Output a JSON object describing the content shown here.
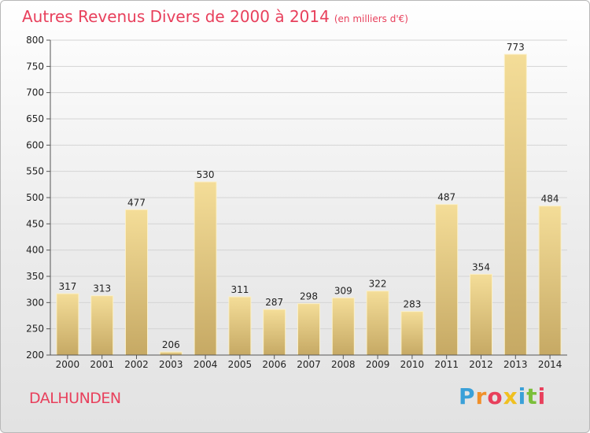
{
  "chart_title": "Autres Revenus Divers de 2000 à 2014",
  "chart_unit": "(en milliers d'€)",
  "town": "DALHUNDEN",
  "brand": {
    "name": "Proxiti",
    "letters": [
      "P",
      "r",
      "o",
      "x",
      "i",
      "t",
      "i"
    ],
    "colors": [
      "#3aa0d8",
      "#f0902a",
      "#e8405c",
      "#f0c020",
      "#3aa0d8",
      "#7bbf3a",
      "#e8405c"
    ]
  },
  "colors": {
    "bar_light": "#f2da94",
    "bar_dark": "#c8ab66",
    "title": "#e8405c"
  },
  "chart_data": {
    "type": "bar",
    "title": "Autres Revenus Divers de 2000 à 2014",
    "xlabel": "",
    "ylabel": "",
    "ylim": [
      200,
      800
    ],
    "yticks": [
      200,
      250,
      300,
      350,
      400,
      450,
      500,
      550,
      600,
      650,
      700,
      750,
      800
    ],
    "grid": true,
    "categories": [
      "2000",
      "2001",
      "2002",
      "2003",
      "2004",
      "2005",
      "2006",
      "2007",
      "2008",
      "2009",
      "2010",
      "2011",
      "2012",
      "2013",
      "2014"
    ],
    "values": [
      317,
      313,
      477,
      206,
      530,
      311,
      287,
      298,
      309,
      322,
      283,
      487,
      354,
      773,
      484
    ]
  }
}
